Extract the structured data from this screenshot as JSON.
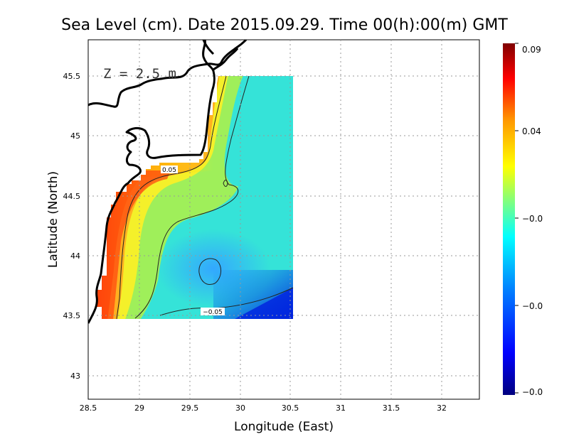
{
  "title": "Sea Level (cm). Date 2015.09.29. Time 00(h):00(m) GMT",
  "depth_label": "Z = 2.5 m",
  "chart_data": {
    "type": "heatmap",
    "xlabel": "Longitude (East)",
    "ylabel": "Latitude (North)",
    "xlim": [
      28.5,
      32.4
    ],
    "ylim": [
      42.8,
      45.8
    ],
    "xticks": [
      28.5,
      29,
      29.5,
      30,
      30.5,
      31,
      31.5,
      32
    ],
    "xtick_labels": [
      "28.5",
      "29",
      "29.5",
      "30",
      "30.5",
      "31",
      "31.5",
      "32"
    ],
    "yticks": [
      43,
      43.5,
      44,
      44.5,
      45,
      45.5
    ],
    "ytick_labels": [
      "43",
      "43.5",
      "44",
      "44.5",
      "45",
      "45.5"
    ],
    "grid": true,
    "data_extent": {
      "lon": [
        28.65,
        30.55
      ],
      "lat": [
        43.5,
        45.5
      ]
    },
    "colorbar": {
      "tick_labels": [
        "0.09",
        "0.04",
        "−0.0",
        "−0.0",
        "−0.0"
      ],
      "colors": [
        "#7f0000",
        "#ff0000",
        "#ff7f00",
        "#ffff00",
        "#7fff7f",
        "#00ffff",
        "#0080ff",
        "#0000ff",
        "#00007f"
      ]
    },
    "contour_labels": [
      {
        "text": "0.05",
        "lon": 29.3,
        "lat": 44.75
      },
      {
        "text": "−0.05",
        "lon": 29.75,
        "lat": 43.55
      }
    ]
  }
}
